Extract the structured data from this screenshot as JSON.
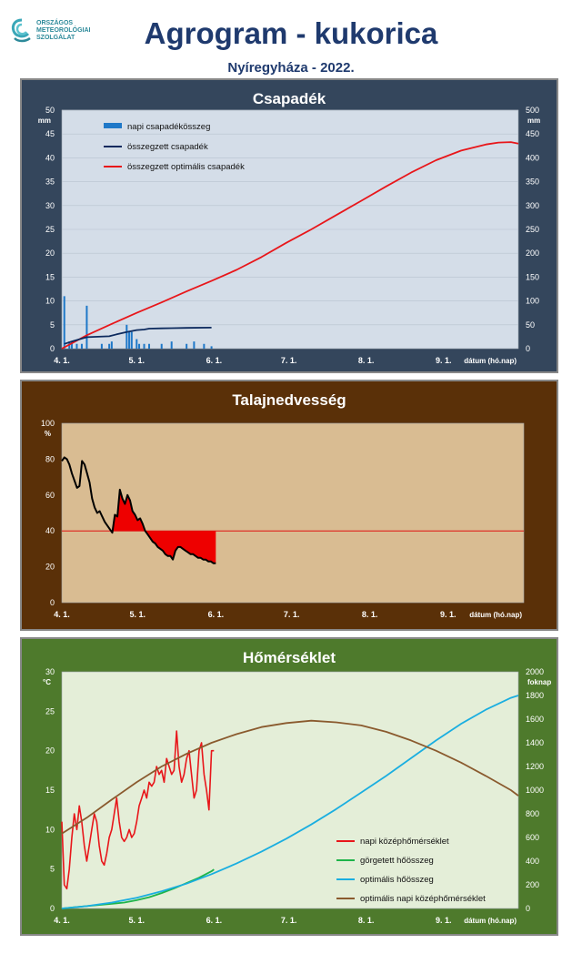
{
  "logo": {
    "lines": [
      "ORSZÁGOS",
      "METEOROLÓGIAI",
      "SZOLGÁLAT"
    ]
  },
  "header": {
    "title": "Agrogram - kukorica",
    "subtitle": "Nyíregyháza - 2022."
  },
  "colors": {
    "precip_panel": "#34465c",
    "soil_panel": "#5a3008",
    "temp_panel": "#4e7a2c",
    "precip_plot": "#d4dde8",
    "soil_plot": "#d9bc92",
    "temp_plot": "#e4eed8"
  },
  "dates": [
    "4. 1.",
    "5. 1.",
    "6. 1.",
    "7. 1.",
    "8. 1.",
    "9. 1."
  ],
  "chart_data": [
    {
      "type": "bar",
      "title": "Csapadék",
      "xlabel": "dátum (hó.nap)",
      "ylabel": "mm",
      "ylabel_right": "mm",
      "ylim": [
        0,
        50
      ],
      "ylim_right": [
        0,
        500
      ],
      "yticks": [
        0,
        5,
        10,
        15,
        20,
        25,
        30,
        35,
        40,
        45,
        50
      ],
      "yticks_right": [
        0,
        50,
        100,
        150,
        200,
        250,
        300,
        350,
        400,
        450,
        500
      ],
      "x_day_range": [
        0,
        183
      ],
      "legend_position": "top-left",
      "series": [
        {
          "name": "napi csapadékösszeg",
          "kind": "bar",
          "axis": "left",
          "color": "#1f78c8",
          "x": [
            1,
            3,
            4,
            6,
            8,
            10,
            16,
            19,
            20,
            26,
            27,
            28,
            30,
            31,
            33,
            35,
            40,
            44,
            50,
            53,
            57,
            60
          ],
          "y": [
            11,
            1.5,
            1.5,
            1,
            1,
            9,
            1,
            1,
            1.5,
            5,
            3.5,
            3.5,
            2,
            1,
            1,
            1,
            1,
            1.5,
            1,
            1.5,
            1,
            0.5
          ]
        },
        {
          "name": "összegzett csapadék",
          "kind": "line",
          "axis": "right",
          "color": "#0d2a5e",
          "x": [
            1,
            4,
            10,
            19,
            22,
            26,
            30,
            33,
            35,
            40,
            44,
            50,
            60
          ],
          "y": [
            10,
            15,
            24,
            26,
            30,
            35,
            39,
            40,
            42,
            42.5,
            43,
            43.5,
            44
          ]
        },
        {
          "name": "összegzett optimális csapadék",
          "kind": "line",
          "axis": "right",
          "color": "#e8161a",
          "x": [
            0,
            10,
            20,
            30,
            40,
            50,
            60,
            70,
            80,
            90,
            100,
            110,
            120,
            130,
            140,
            150,
            160,
            170,
            175,
            180,
            183
          ],
          "y": [
            0,
            28,
            52,
            75,
            97,
            120,
            142,
            165,
            192,
            222,
            250,
            280,
            310,
            340,
            369,
            395,
            415,
            428,
            432,
            433,
            430
          ]
        }
      ]
    },
    {
      "type": "area",
      "title": "Talajnedvesség",
      "xlabel": "dátum (hó.nap)",
      "ylabel": "%",
      "ylim": [
        0,
        100
      ],
      "yticks": [
        0,
        20,
        40,
        60,
        80,
        100
      ],
      "x_day_range": [
        0,
        183
      ],
      "threshold": 40,
      "series": [
        {
          "name": "",
          "kind": "line",
          "color": "#000000",
          "x": [
            0,
            1,
            2,
            3,
            4,
            5,
            6,
            7,
            8,
            9,
            10,
            11,
            12,
            13,
            14,
            15,
            16,
            17,
            18,
            19,
            20,
            21,
            22,
            23,
            24,
            25,
            26,
            27,
            28,
            29,
            30,
            31,
            32,
            33,
            34,
            35,
            36,
            37,
            38,
            39,
            40,
            41,
            42,
            43,
            44,
            45,
            46,
            47,
            48,
            49,
            50,
            51,
            52,
            53,
            54,
            55,
            56,
            57,
            58,
            59,
            60,
            61
          ],
          "y": [
            79,
            81,
            80,
            77,
            72,
            68,
            64,
            65,
            79,
            77,
            72,
            67,
            58,
            53,
            50,
            51,
            48,
            45,
            43,
            41,
            39,
            49,
            48,
            63,
            58,
            55,
            60,
            57,
            51,
            49,
            46,
            47,
            44,
            40,
            38,
            36,
            34,
            33,
            31,
            30,
            29,
            27,
            26,
            26,
            24,
            29,
            31,
            31,
            30,
            29,
            28,
            27,
            27,
            26,
            25,
            25,
            24,
            24,
            23,
            23,
            22,
            22
          ]
        }
      ]
    },
    {
      "type": "line",
      "title": "Hőmérséklet",
      "xlabel": "dátum (hó.nap)",
      "ylabel": "°C",
      "ylabel_right": "foknap",
      "ylim": [
        0,
        30
      ],
      "ylim_right": [
        0,
        2000
      ],
      "yticks": [
        0,
        5,
        10,
        15,
        20,
        25,
        30
      ],
      "yticks_right": [
        0,
        200,
        400,
        600,
        800,
        1000,
        1200,
        1400,
        1600,
        1800,
        2000
      ],
      "x_day_range": [
        0,
        183
      ],
      "legend_position": "bottom-right",
      "series": [
        {
          "name": "napi középhőmérséklet",
          "axis": "left",
          "color": "#e8161a",
          "x": [
            0,
            1,
            2,
            3,
            4,
            5,
            6,
            7,
            8,
            9,
            10,
            11,
            12,
            13,
            14,
            15,
            16,
            17,
            18,
            19,
            20,
            21,
            22,
            23,
            24,
            25,
            26,
            27,
            28,
            29,
            30,
            31,
            32,
            33,
            34,
            35,
            36,
            37,
            38,
            39,
            40,
            41,
            42,
            43,
            44,
            45,
            46,
            47,
            48,
            49,
            50,
            51,
            52,
            53,
            54,
            55,
            56,
            57,
            58,
            59,
            60,
            61
          ],
          "y": [
            11,
            3,
            2.5,
            5,
            9,
            12,
            10,
            13,
            11,
            8,
            6,
            8,
            10,
            12,
            11,
            8,
            6,
            5.5,
            7,
            9,
            10,
            12,
            14,
            11,
            9,
            8.5,
            9,
            10,
            9,
            9.5,
            11,
            13,
            14,
            15,
            14,
            16,
            15.5,
            16,
            18,
            17,
            17.5,
            16,
            19,
            18,
            17,
            17.5,
            22.5,
            18,
            16,
            17,
            19,
            20,
            17,
            14,
            15,
            20,
            21,
            17,
            15,
            12.5,
            20,
            20
          ]
        },
        {
          "name": "görgetett hőösszeg",
          "axis": "right",
          "color": "#1eb44a",
          "x": [
            0,
            5,
            10,
            15,
            20,
            25,
            30,
            35,
            40,
            45,
            50,
            55,
            60,
            61
          ],
          "y": [
            0,
            10,
            20,
            30,
            40,
            50,
            70,
            95,
            130,
            170,
            215,
            260,
            315,
            330
          ]
        },
        {
          "name": "optimális hőösszeg",
          "axis": "right",
          "color": "#1aaee0",
          "x": [
            0,
            10,
            20,
            30,
            40,
            50,
            60,
            70,
            80,
            90,
            100,
            110,
            120,
            130,
            140,
            150,
            160,
            170,
            175,
            180,
            183
          ],
          "y": [
            0,
            20,
            50,
            90,
            145,
            210,
            290,
            380,
            480,
            590,
            710,
            840,
            980,
            1120,
            1270,
            1420,
            1560,
            1680,
            1730,
            1780,
            1800
          ]
        },
        {
          "name": "optimális napi középhőmérséklet",
          "axis": "left",
          "color": "#8a5a2e",
          "x": [
            0,
            10,
            20,
            30,
            40,
            50,
            60,
            70,
            80,
            90,
            100,
            110,
            120,
            130,
            140,
            150,
            160,
            170,
            180,
            183
          ],
          "y": [
            9.5,
            11.5,
            13.8,
            16,
            18,
            19.6,
            21,
            22.1,
            23,
            23.5,
            23.8,
            23.6,
            23.2,
            22.4,
            21.3,
            20,
            18.5,
            16.8,
            15,
            14.3
          ]
        }
      ]
    }
  ]
}
